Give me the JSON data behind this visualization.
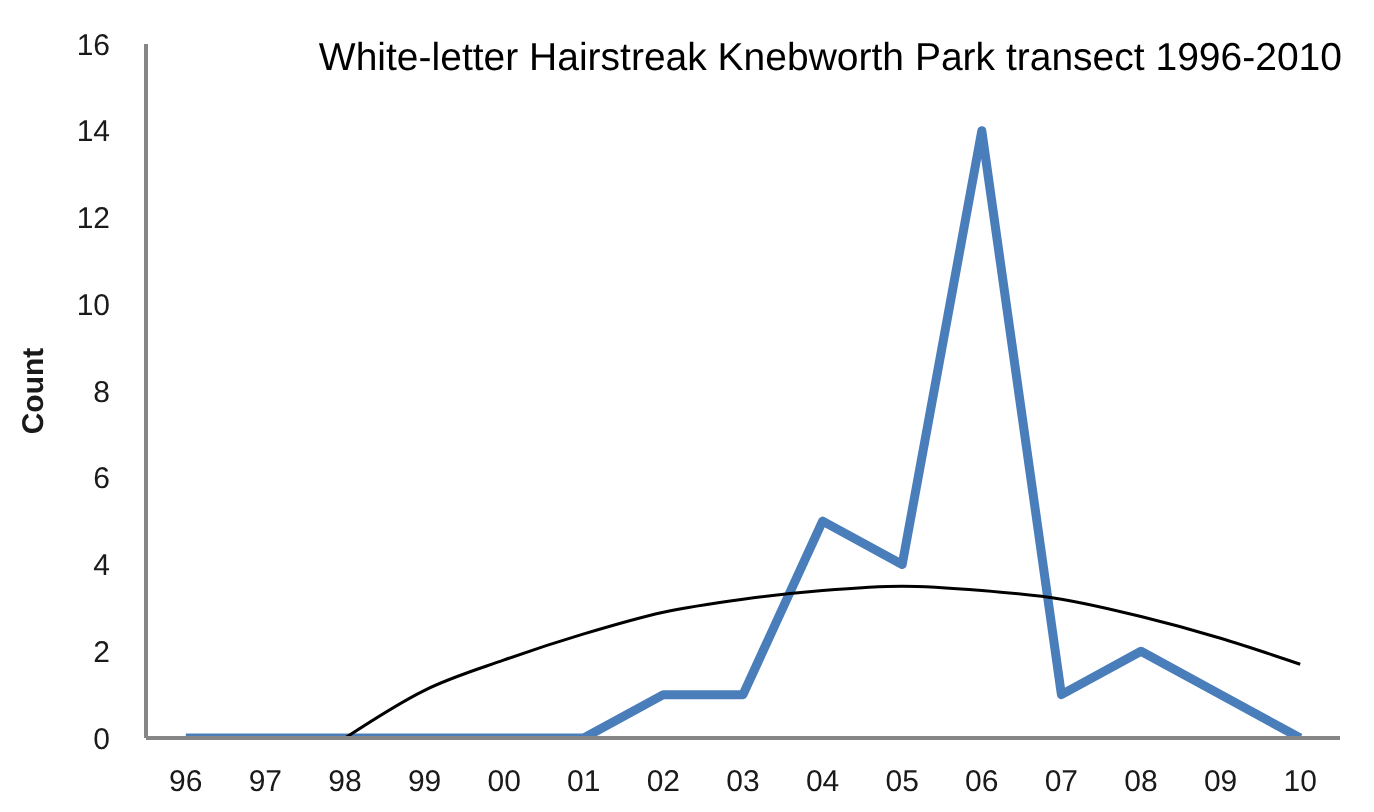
{
  "chart_data": {
    "type": "line",
    "title": "White-letter Hairstreak Knebworth Park transect 1996-2010",
    "ylabel": "Count",
    "categories": [
      "96",
      "97",
      "98",
      "99",
      "00",
      "01",
      "02",
      "03",
      "04",
      "05",
      "06",
      "07",
      "08",
      "09",
      "10"
    ],
    "series": [
      {
        "color": "#4a7ebb",
        "values": [
          0,
          0,
          0,
          0,
          0,
          0,
          1,
          1,
          5,
          4,
          14,
          1,
          2,
          1,
          0
        ]
      },
      {
        "color": "#000000",
        "values": [
          null,
          null,
          0,
          1.1,
          1.8,
          2.4,
          2.9,
          3.2,
          3.4,
          3.5,
          3.4,
          3.2,
          2.8,
          2.3,
          1.7
        ]
      }
    ],
    "ylim": [
      0,
      16
    ],
    "yticks": [
      0,
      2,
      4,
      6,
      8,
      10,
      12,
      14,
      16
    ],
    "marker": "none"
  }
}
